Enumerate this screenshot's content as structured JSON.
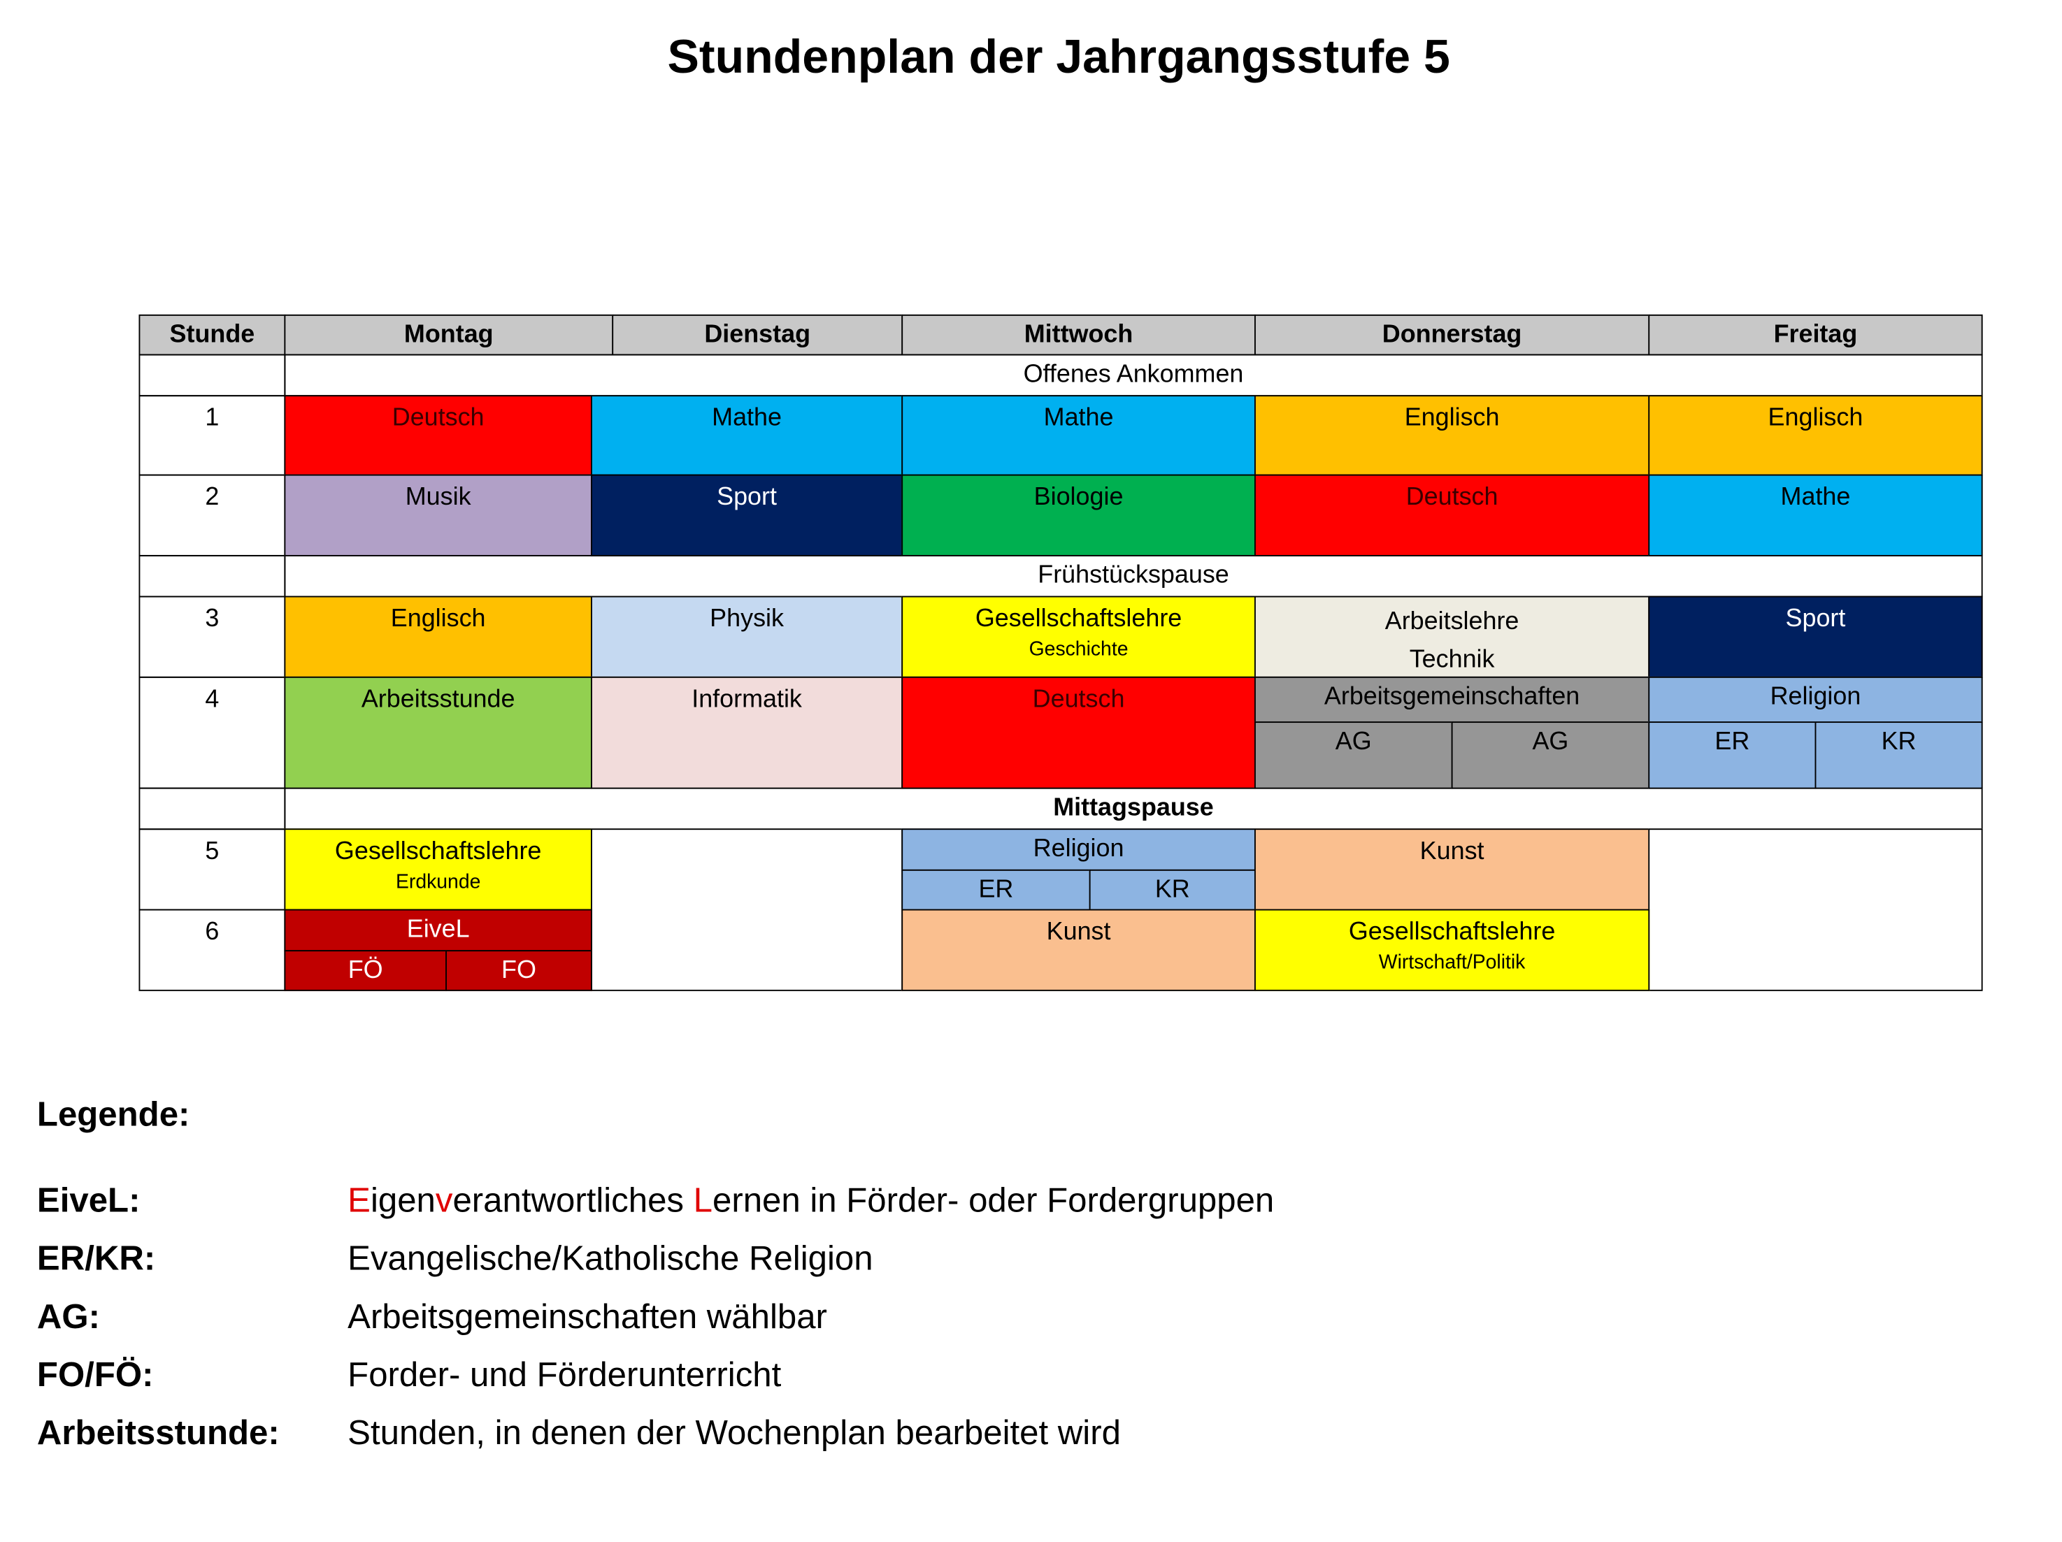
{
  "title": "Stundenplan der Jahrgangsstufe 5",
  "header": {
    "stunde": "Stunde",
    "days": [
      "Montag",
      "Dienstag",
      "Mittwoch",
      "Donnerstag",
      "Freitag"
    ]
  },
  "breaks": {
    "arrival": "Offenes Ankommen",
    "breakfast": "Frühstückspause",
    "lunch": "Mittagspause"
  },
  "periods": [
    "1",
    "2",
    "3",
    "4",
    "5",
    "6"
  ],
  "colors": {
    "deutsch": "#ff0000",
    "mathe": "#00b0f0",
    "englisch": "#ffc000",
    "musik": "#b1a0c7",
    "sport": "#002060",
    "biologie": "#00b050",
    "physik": "#c5d9f1",
    "gesellschaftslehre": "#ffff00",
    "arbeitslehre": "#eeece1",
    "arbeitsstunde": "#92d050",
    "informatik": "#f2dcdb",
    "ag": "#969696",
    "religion": "#8db4e2",
    "kunst": "#fabf8f",
    "eivel": "#c00000",
    "header": "#c8c8c8"
  },
  "schedule": {
    "p1": {
      "mon": "Deutsch",
      "tue": "Mathe",
      "wed": "Mathe",
      "thu": "Englisch",
      "fri": "Englisch"
    },
    "p2": {
      "mon": "Musik",
      "tue": "Sport",
      "wed": "Biologie",
      "thu": "Deutsch",
      "fri": "Mathe"
    },
    "p3": {
      "mon": "Englisch",
      "tue": "Physik",
      "wed": "Gesellschaftslehre",
      "wed_sub": "Geschichte",
      "thu": "Arbeitslehre",
      "thu_sub": "Technik",
      "fri": "Sport"
    },
    "p4": {
      "mon": "Arbeitsstunde",
      "tue": "Informatik",
      "wed": "Deutsch",
      "thu": "Arbeitsgemeinschaften",
      "thu_a": "AG",
      "thu_b": "AG",
      "fri": "Religion",
      "fri_a": "ER",
      "fri_b": "KR"
    },
    "p5": {
      "mon": "Gesellschaftslehre",
      "mon_sub": "Erdkunde",
      "wed": "Religion",
      "wed_a": "ER",
      "wed_b": "KR",
      "thu": "Kunst"
    },
    "p6": {
      "mon": "EiveL",
      "mon_a": "FÖ",
      "mon_b": "FO",
      "wed": "Kunst",
      "thu": "Gesellschaftslehre",
      "thu_sub": "Wirtschaft/Politik"
    }
  },
  "legend": {
    "heading": "Legende:",
    "items": [
      {
        "term": "EiveL:",
        "parts": [
          "E",
          "igen",
          "v",
          "erantwortliches ",
          "L",
          "ernen in Förder- oder Fordergruppen"
        ]
      },
      {
        "term": "ER/KR:",
        "desc": "Evangelische/Katholische Religion"
      },
      {
        "term": "AG:",
        "desc": "Arbeitsgemeinschaften wählbar"
      },
      {
        "term": "FO/FÖ:",
        "desc": "Forder- und Förderunterricht"
      },
      {
        "term": "Arbeitsstunde:",
        "desc": "Stunden, in denen der Wochenplan bearbeitet wird"
      }
    ]
  }
}
